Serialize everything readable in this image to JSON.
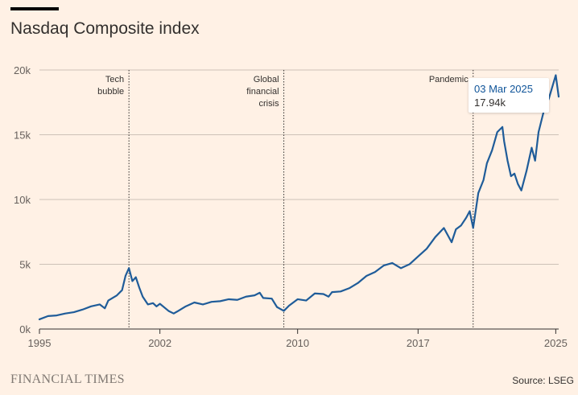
{
  "header": {
    "title": "Nasdaq Composite index"
  },
  "footer": {
    "brand": "FINANCIAL TIMES",
    "source": "Source: LSEG"
  },
  "tooltip": {
    "date": "03 Mar 2025",
    "value": "17.94k"
  },
  "colors": {
    "line": "#1f5c99",
    "grid": "#ccc1b7",
    "background": "#fff1e5",
    "tooltip_date": "#0f5499"
  },
  "chart_data": {
    "type": "line",
    "title": "Nasdaq Composite index",
    "xlabel": "",
    "ylabel": "",
    "xlim": [
      1995,
      2025.17
    ],
    "ylim": [
      0,
      20000
    ],
    "x_ticks": [
      1995,
      2002,
      2010,
      2017,
      2025
    ],
    "x_tick_labels": [
      "1995",
      "2002",
      "2010",
      "2017",
      "2025"
    ],
    "y_ticks": [
      0,
      5000,
      10000,
      15000,
      20000
    ],
    "y_tick_labels": [
      "0k",
      "5k",
      "10k",
      "15k",
      "20k"
    ],
    "annotations": [
      {
        "x": 2000.2,
        "lines": [
          "Tech",
          "bubble"
        ]
      },
      {
        "x": 2009.2,
        "lines": [
          "Global",
          "financial",
          "crisis"
        ]
      },
      {
        "x": 2020.2,
        "lines": [
          "Pandemic"
        ]
      }
    ],
    "series": [
      {
        "name": "Nasdaq Composite",
        "x": [
          1995.0,
          1995.5,
          1996.0,
          1996.5,
          1997.0,
          1997.5,
          1998.0,
          1998.5,
          1998.8,
          1999.0,
          1999.5,
          1999.8,
          2000.0,
          2000.2,
          2000.4,
          2000.6,
          2000.8,
          2001.0,
          2001.3,
          2001.6,
          2001.8,
          2002.0,
          2002.5,
          2002.8,
          2003.0,
          2003.5,
          2004.0,
          2004.5,
          2005.0,
          2005.5,
          2006.0,
          2006.5,
          2007.0,
          2007.5,
          2007.8,
          2008.0,
          2008.5,
          2008.8,
          2009.2,
          2009.5,
          2010.0,
          2010.5,
          2011.0,
          2011.5,
          2011.8,
          2012.0,
          2012.5,
          2013.0,
          2013.5,
          2014.0,
          2014.5,
          2015.0,
          2015.5,
          2016.0,
          2016.5,
          2017.0,
          2017.5,
          2018.0,
          2018.5,
          2018.95,
          2019.2,
          2019.5,
          2019.8,
          2020.0,
          2020.2,
          2020.5,
          2020.8,
          2021.0,
          2021.3,
          2021.6,
          2021.9,
          2022.0,
          2022.2,
          2022.4,
          2022.6,
          2022.8,
          2023.0,
          2023.3,
          2023.6,
          2023.8,
          2024.0,
          2024.3,
          2024.6,
          2024.8,
          2025.0,
          2025.17
        ],
        "values": [
          750,
          1000,
          1050,
          1200,
          1300,
          1500,
          1750,
          1900,
          1600,
          2200,
          2600,
          3000,
          4100,
          4700,
          3700,
          4000,
          3200,
          2500,
          1900,
          2000,
          1750,
          1950,
          1400,
          1200,
          1350,
          1750,
          2050,
          1900,
          2100,
          2150,
          2300,
          2250,
          2500,
          2600,
          2800,
          2400,
          2350,
          1700,
          1400,
          1800,
          2300,
          2200,
          2750,
          2700,
          2500,
          2850,
          2900,
          3150,
          3550,
          4100,
          4400,
          4900,
          5100,
          4700,
          5000,
          5600,
          6200,
          7100,
          7800,
          6700,
          7700,
          8000,
          8600,
          9100,
          7800,
          10500,
          11500,
          12800,
          13800,
          15200,
          15600,
          14500,
          13000,
          11800,
          12000,
          11200,
          10700,
          12200,
          14000,
          13000,
          15200,
          16800,
          17800,
          18700,
          19600,
          17940
        ]
      }
    ]
  }
}
